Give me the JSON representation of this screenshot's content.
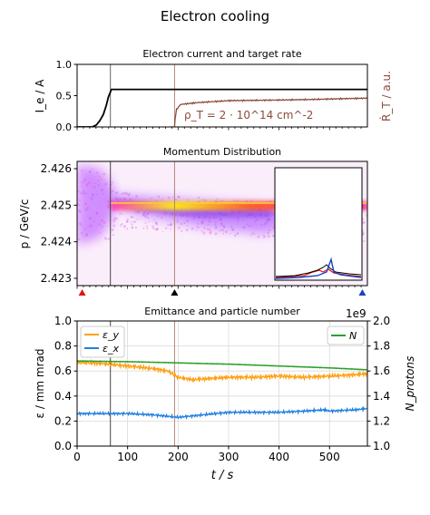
{
  "figure": {
    "suptitle": "Electron cooling"
  },
  "colors": {
    "current": "#000000",
    "rate": "#8c4b3c",
    "vline_gray": "#555555",
    "vline_rate": "#b07a6a",
    "eps_y": "#ff9f10",
    "eps_x": "#1f7fe0",
    "N": "#2ca02c",
    "marker_red": "#e3140f",
    "marker_black": "#000000",
    "marker_blue": "#1a3fc9"
  },
  "chart_data": [
    {
      "type": "line",
      "title": "Electron current and target rate",
      "ylabel": "I_e / A",
      "ylabel_right": "Ṙ_T / a.u.",
      "annotation": "ρ_T = 2 · 10^14 cm^-2",
      "xlim": [
        0,
        575
      ],
      "ylim": [
        0,
        1.0
      ],
      "yticks": [
        "0.0",
        "0.5",
        "1.0"
      ],
      "vlines": [
        66,
        193
      ],
      "series": [
        {
          "name": "I_e",
          "x": [
            0,
            30,
            38,
            45,
            52,
            58,
            62,
            68,
            575
          ],
          "values": [
            0,
            0,
            0.03,
            0.1,
            0.2,
            0.35,
            0.48,
            0.6,
            0.6
          ]
        },
        {
          "name": "R_T",
          "x": [
            185,
            190,
            193,
            194,
            197,
            205,
            240,
            300,
            400,
            470,
            520,
            575
          ],
          "values": [
            0.0,
            0.0,
            0.0,
            0.12,
            0.28,
            0.36,
            0.39,
            0.42,
            0.43,
            0.44,
            0.45,
            0.46
          ]
        }
      ]
    },
    {
      "type": "heatmap",
      "title": "Momentum Distribution",
      "ylabel": "p / GeV/c",
      "xlim": [
        0,
        575
      ],
      "ylim": [
        2.4228,
        2.4262
      ],
      "yticks": [
        "2.423",
        "2.424",
        "2.425",
        "2.426"
      ],
      "vlines": [
        66,
        193
      ],
      "markers": [
        {
          "x": 10,
          "color": "red"
        },
        {
          "x": 193,
          "color": "black"
        },
        {
          "x": 565,
          "color": "blue"
        }
      ]
    },
    {
      "type": "line",
      "title": "Emittance and particle number",
      "xlabel": "t / s",
      "ylabel": "ε / mm mrad",
      "ylabel_right": "N_protons",
      "offset_label": "1e9",
      "xlim": [
        0,
        575
      ],
      "ylim": [
        0.0,
        1.0
      ],
      "ylim_right": [
        1.0,
        2.0
      ],
      "xticks": [
        "0",
        "100",
        "200",
        "300",
        "400",
        "500"
      ],
      "yticks": [
        "0.0",
        "0.2",
        "0.4",
        "0.6",
        "0.8",
        "1.0"
      ],
      "yticks_right": [
        "1.0",
        "1.2",
        "1.4",
        "1.6",
        "1.8",
        "2.0"
      ],
      "legend_left": [
        "ε_y",
        "ε_x"
      ],
      "legend_right": [
        "N"
      ],
      "vlines": [
        66,
        193
      ],
      "series": [
        {
          "name": "ε_y",
          "x": [
            0,
            50,
            100,
            150,
            180,
            200,
            230,
            260,
            300,
            350,
            400,
            450,
            500,
            550,
            575
          ],
          "values": [
            0.67,
            0.66,
            0.64,
            0.62,
            0.6,
            0.55,
            0.53,
            0.54,
            0.55,
            0.55,
            0.56,
            0.55,
            0.56,
            0.57,
            0.58
          ]
        },
        {
          "name": "ε_x",
          "x": [
            0,
            50,
            100,
            150,
            200,
            250,
            300,
            350,
            400,
            450,
            490,
            500,
            550,
            575
          ],
          "values": [
            0.26,
            0.26,
            0.26,
            0.25,
            0.23,
            0.25,
            0.27,
            0.27,
            0.27,
            0.28,
            0.29,
            0.28,
            0.29,
            0.3
          ]
        },
        {
          "name": "N",
          "x": [
            0,
            100,
            200,
            300,
            400,
            500,
            575
          ],
          "values": [
            1.68,
            1.675,
            1.665,
            1.655,
            1.64,
            1.625,
            1.61
          ]
        }
      ]
    }
  ]
}
